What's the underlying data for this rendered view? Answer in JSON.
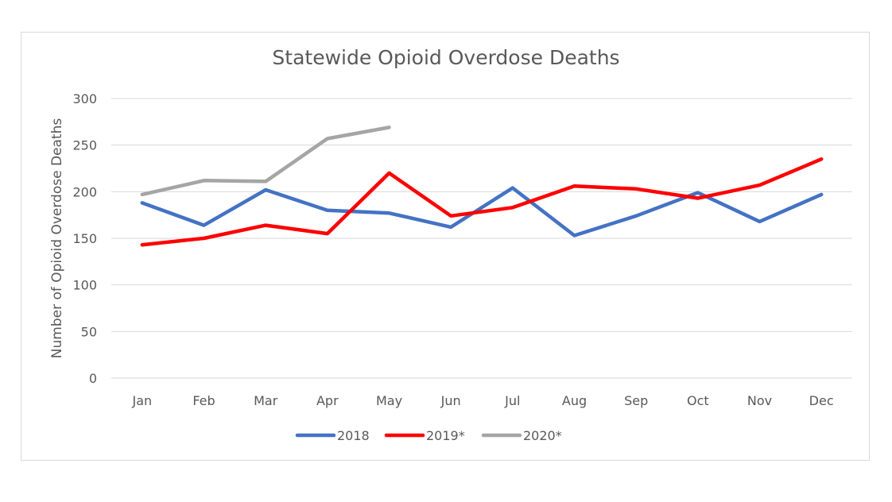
{
  "chart_data": {
    "type": "line",
    "title": "Statewide Opioid Overdose Deaths",
    "xlabel": "",
    "ylabel": "Number of Opioid Overdose Deaths",
    "categories": [
      "Jan",
      "Feb",
      "Mar",
      "Apr",
      "May",
      "Jun",
      "Jul",
      "Aug",
      "Sep",
      "Oct",
      "Nov",
      "Dec"
    ],
    "ylim": [
      0,
      300
    ],
    "yticks": [
      0,
      50,
      100,
      150,
      200,
      250,
      300
    ],
    "grid": true,
    "legend_position": "bottom",
    "series": [
      {
        "name": "2018",
        "color": "#4472c4",
        "values": [
          188,
          164,
          202,
          180,
          177,
          162,
          204,
          153,
          174,
          199,
          168,
          197
        ]
      },
      {
        "name": "2019*",
        "color": "#ff0000",
        "values": [
          143,
          150,
          164,
          155,
          220,
          174,
          183,
          206,
          203,
          193,
          207,
          235
        ]
      },
      {
        "name": "2020*",
        "color": "#a5a5a5",
        "values": [
          197,
          212,
          211,
          257,
          269,
          null,
          null,
          null,
          null,
          null,
          null,
          null
        ]
      }
    ]
  }
}
